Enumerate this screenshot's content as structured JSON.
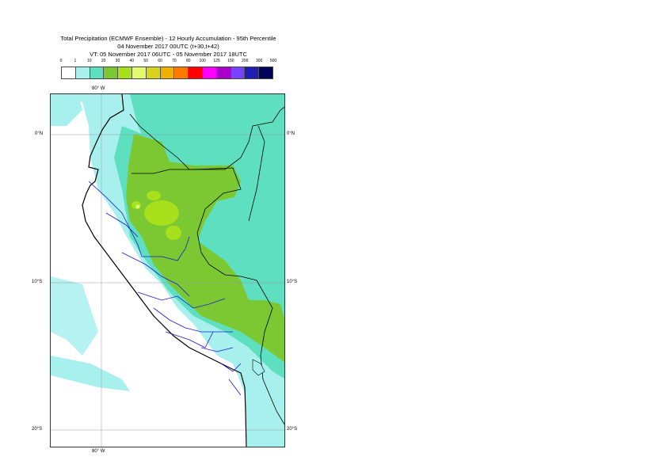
{
  "title": {
    "line1": "Total Precipitation (ECMWF Ensemble) - 12 Hourly Accumulation - 95th Percentile",
    "line2": "04 November 2017 00UTC (t+30,t+42)",
    "line3": "VT: 05 November 2017 06UTC - 05 November 2017 18UTC"
  },
  "legend": {
    "ticks": [
      "0",
      "1",
      "10",
      "20",
      "30",
      "40",
      "50",
      "60",
      "70",
      "80",
      "100",
      "125",
      "150",
      "200",
      "300",
      "500"
    ],
    "colors": [
      "#ffffff",
      "#a8f0ee",
      "#5ee0c0",
      "#7cc832",
      "#a8e01c",
      "#e4fa6e",
      "#d8d41e",
      "#f0b000",
      "#ff7800",
      "#ff0000",
      "#ff00ff",
      "#aa00cc",
      "#7840ff",
      "#1e1eb4",
      "#00005a"
    ]
  },
  "map": {
    "lon_label_top": "80° W",
    "lon_label_bottom": "80° W",
    "lat_labels": {
      "n0": "0°N",
      "s10": "10°S",
      "s20": "20°S"
    }
  }
}
